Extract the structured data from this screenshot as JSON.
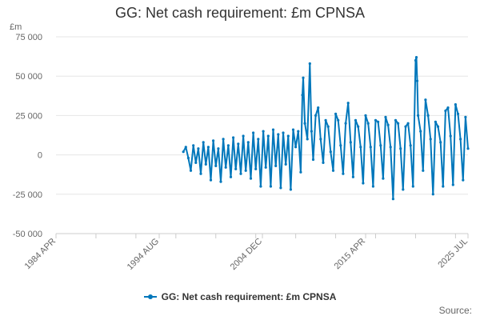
{
  "chart_data": {
    "type": "line",
    "title": "GG: Net cash requirement: £m CPNSA",
    "ylabel": "£m",
    "ylim": [
      -50000,
      75000
    ],
    "yticks": [
      75000,
      50000,
      25000,
      0,
      -25000,
      -50000
    ],
    "ytick_labels": [
      "75 000",
      "50 000",
      "25 000",
      "0",
      "-25 000",
      "-50 000"
    ],
    "xlim": [
      "1984-04",
      "2025-07"
    ],
    "xticks": [
      "1984-04",
      "1994-08",
      "2004-12",
      "2015-04",
      "2025-07"
    ],
    "xtick_labels": [
      "1984 APR",
      "1994 AUG",
      "2004 DEC",
      "2015 APR",
      "2025 JUL"
    ],
    "legend_position": "bottom",
    "grid": true,
    "color": "#0077bb",
    "series": [
      {
        "name": "GG: Net cash requirement: £m CPNSA",
        "x": [
          "1997-01",
          "1997-04",
          "1997-07",
          "1997-10",
          "1998-01",
          "1998-04",
          "1998-07",
          "1998-10",
          "1999-01",
          "1999-04",
          "1999-07",
          "1999-10",
          "2000-01",
          "2000-04",
          "2000-07",
          "2000-10",
          "2001-01",
          "2001-04",
          "2001-07",
          "2001-10",
          "2002-01",
          "2002-04",
          "2002-07",
          "2002-10",
          "2003-01",
          "2003-04",
          "2003-07",
          "2003-10",
          "2004-01",
          "2004-04",
          "2004-07",
          "2004-10",
          "2005-01",
          "2005-04",
          "2005-07",
          "2005-10",
          "2006-01",
          "2006-04",
          "2006-07",
          "2006-10",
          "2007-01",
          "2007-04",
          "2007-07",
          "2007-10",
          "2008-01",
          "2008-04",
          "2008-07",
          "2008-10",
          "2008-12",
          "2009-01",
          "2009-03",
          "2009-06",
          "2009-09",
          "2009-11",
          "2010-01",
          "2010-04",
          "2010-07",
          "2010-10",
          "2011-01",
          "2011-04",
          "2011-07",
          "2011-10",
          "2012-01",
          "2012-04",
          "2012-07",
          "2012-10",
          "2013-01",
          "2013-04",
          "2013-07",
          "2013-10",
          "2014-01",
          "2014-04",
          "2014-07",
          "2014-10",
          "2015-01",
          "2015-04",
          "2015-07",
          "2015-10",
          "2016-01",
          "2016-04",
          "2016-07",
          "2016-10",
          "2017-01",
          "2017-04",
          "2017-07",
          "2017-10",
          "2018-01",
          "2018-04",
          "2018-07",
          "2018-10",
          "2019-01",
          "2019-04",
          "2019-07",
          "2019-10",
          "2020-01",
          "2020-04",
          "2020-05",
          "2020-06",
          "2020-07",
          "2020-10",
          "2021-01",
          "2021-04",
          "2021-07",
          "2021-10",
          "2022-01",
          "2022-04",
          "2022-07",
          "2022-10",
          "2023-01",
          "2023-04",
          "2023-07",
          "2023-10",
          "2024-01",
          "2024-04",
          "2024-07",
          "2024-10",
          "2025-01",
          "2025-04",
          "2025-07"
        ],
        "values": [
          2000,
          5000,
          -2000,
          -10000,
          6000,
          -5000,
          4000,
          -12000,
          8000,
          -6000,
          5000,
          -16000,
          9000,
          -7000,
          4000,
          -17000,
          10000,
          -8000,
          6000,
          -14000,
          11000,
          -9000,
          7000,
          -12000,
          12000,
          -10000,
          8000,
          -15000,
          14000,
          -9000,
          10000,
          -20000,
          15000,
          -8000,
          12000,
          -20000,
          16000,
          -7000,
          13000,
          -21000,
          14000,
          -6000,
          12000,
          -22000,
          16000,
          5000,
          15000,
          -11000,
          38000,
          49000,
          20000,
          10000,
          58000,
          15000,
          -3000,
          25000,
          30000,
          10000,
          -5000,
          22000,
          18000,
          2000,
          -10000,
          26000,
          22000,
          6000,
          -12000,
          20000,
          33000,
          8000,
          -14000,
          22000,
          18000,
          5000,
          -18000,
          25000,
          20000,
          5000,
          -20000,
          22000,
          21000,
          6000,
          -15000,
          24000,
          19000,
          5000,
          -28000,
          22000,
          20000,
          4000,
          -22000,
          18000,
          20000,
          6000,
          -20000,
          60000,
          62000,
          47000,
          25000,
          15000,
          -10000,
          35000,
          25000,
          10000,
          -25000,
          21000,
          18000,
          8000,
          -20000,
          28000,
          30000,
          12000,
          -19000,
          32000,
          26000,
          10000,
          -16000,
          24000,
          4000
        ]
      }
    ]
  },
  "legend": {
    "label": "GG: Net cash requirement: £m CPNSA"
  },
  "source_label": "Source:"
}
